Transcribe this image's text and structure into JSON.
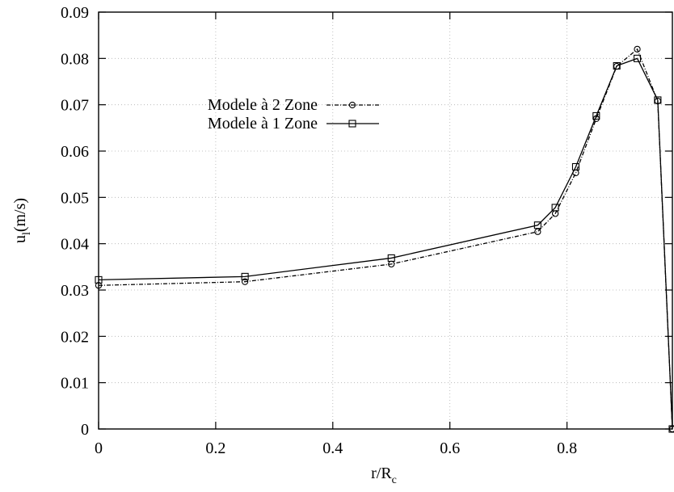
{
  "chart_data": {
    "type": "line",
    "title": "",
    "xlabel": "r/R",
    "xlabel_sub": "c",
    "ylabel": "u",
    "ylabel_sub": "l",
    "ylabel_suffix": "(m/s)",
    "xlim": [
      0,
      0.98
    ],
    "ylim": [
      0,
      0.09
    ],
    "x_ticks": [
      0,
      0.2,
      0.4,
      0.6,
      0.8
    ],
    "x_tick_labels": [
      "0",
      "0.2",
      "0.4",
      "0.6",
      "0.8"
    ],
    "y_ticks": [
      0,
      0.01,
      0.02,
      0.03,
      0.04,
      0.05,
      0.06,
      0.07,
      0.08,
      0.09
    ],
    "y_tick_labels": [
      "0",
      "0.01",
      "0.02",
      "0.03",
      "0.04",
      "0.05",
      "0.06",
      "0.07",
      "0.08",
      "0.09"
    ],
    "grid": true,
    "legend_position": "top-left",
    "series": [
      {
        "name": "Modele à 2 Zone",
        "marker": "circle",
        "line_style": "dash-dot",
        "x": [
          0,
          0.25,
          0.5,
          0.75,
          0.78,
          0.815,
          0.85,
          0.885,
          0.92,
          0.955,
          0.98
        ],
        "y": [
          0.031,
          0.0318,
          0.0356,
          0.0426,
          0.0465,
          0.0553,
          0.067,
          0.0783,
          0.082,
          0.0708,
          0
        ]
      },
      {
        "name": "Modele à 1 Zone",
        "marker": "square",
        "line_style": "solid",
        "x": [
          0,
          0.25,
          0.5,
          0.75,
          0.78,
          0.815,
          0.85,
          0.885,
          0.92,
          0.955,
          0.98
        ],
        "y": [
          0.0322,
          0.0329,
          0.0369,
          0.044,
          0.0478,
          0.0566,
          0.0676,
          0.0784,
          0.08,
          0.071,
          0
        ]
      }
    ]
  }
}
